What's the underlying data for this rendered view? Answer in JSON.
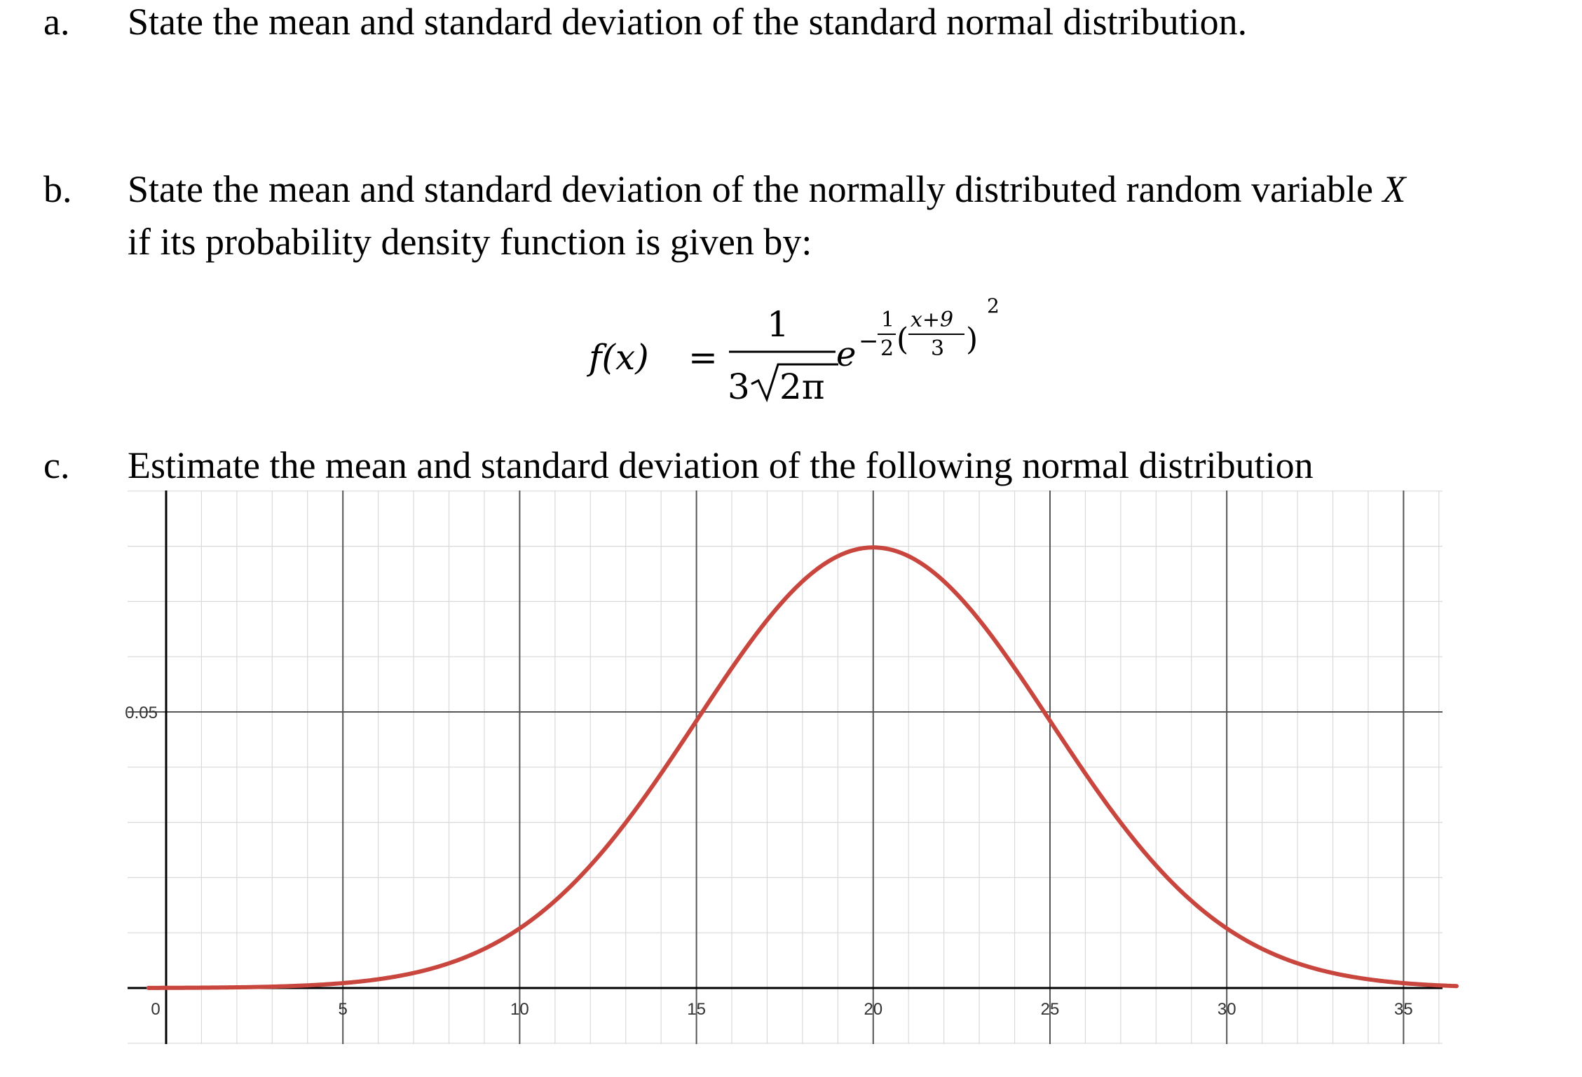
{
  "questions": [
    {
      "marker": "a.",
      "text": "State the mean and standard deviation of the standard normal distribution."
    },
    {
      "marker": "b.",
      "text_line1_prefix": "State the mean and standard deviation of the normally distributed random variable ",
      "text_line1_var": "X",
      "text_line2": "if its probability density function is given by:"
    },
    {
      "marker": "c.",
      "text": "Estimate the mean and standard deviation of the following normal distribution"
    }
  ],
  "formula": {
    "lhs": "f(x)",
    "equals": "=",
    "numerator": "1",
    "denominator_coef": "3",
    "denominator_radicand": "2π",
    "base": "e",
    "exp_sign": "−",
    "exp_half_num": "1",
    "exp_half_den": "2",
    "exp_frac_num": "x+9",
    "exp_frac_den": "3",
    "exp_power": "2"
  },
  "chart_data": {
    "type": "line",
    "title": "",
    "xlabel": "",
    "ylabel": "",
    "x_ticks": [
      "0",
      "5",
      "10",
      "15",
      "20",
      "25",
      "30",
      "35"
    ],
    "y_ticks": [
      "0.05"
    ],
    "xlim": [
      -0.5,
      36.5
    ],
    "ylim": [
      -0.01,
      0.09
    ],
    "grid": true,
    "series": [
      {
        "color": "#c8463e",
        "mean": 20,
        "sd": 5,
        "x": [
          -0.5,
          5,
          10,
          15,
          20,
          25,
          30,
          36.5
        ],
        "y": [
          0.0,
          0.0009,
          0.0108,
          0.0484,
          0.0798,
          0.0484,
          0.0108,
          0.0003
        ]
      }
    ]
  }
}
